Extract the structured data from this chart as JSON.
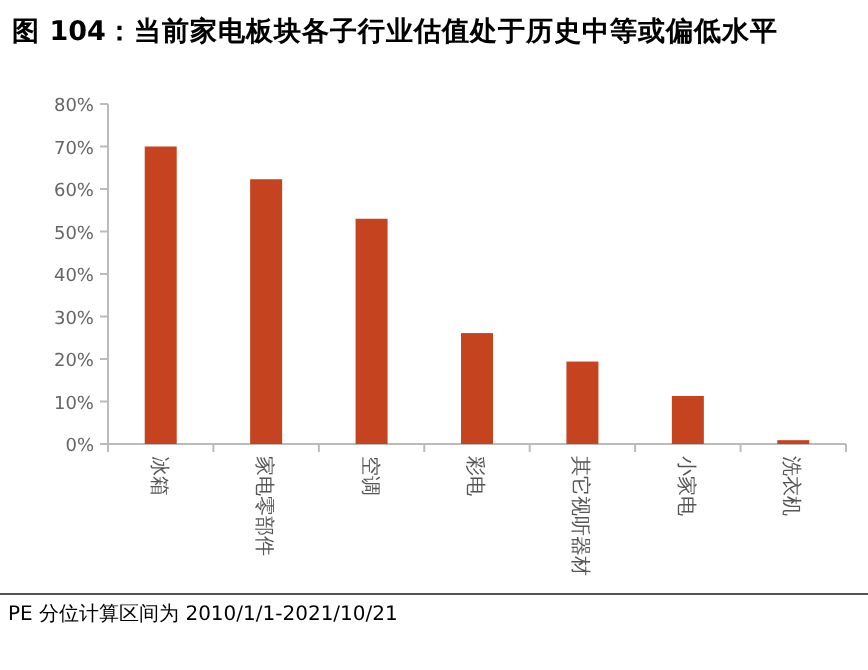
{
  "chart_data": {
    "type": "bar",
    "title": "图 104：当前家电板块各子行业估值处于历史中等或偏低水平",
    "categories": [
      "冰箱",
      "家电零部件",
      "空调",
      "彩电",
      "其它视听器材",
      "小家电",
      "洗衣机"
    ],
    "values": [
      70,
      62.3,
      53,
      26.1,
      19.4,
      11.3,
      0.9
    ],
    "color": "#c5441f",
    "ylim": [
      0,
      80
    ],
    "yticks": [
      {
        "value": 0,
        "label": "0%"
      },
      {
        "value": 10,
        "label": "10%"
      },
      {
        "value": 20,
        "label": "20%"
      },
      {
        "value": 30,
        "label": "30%"
      },
      {
        "value": 40,
        "label": "40%"
      },
      {
        "value": 50,
        "label": "50%"
      },
      {
        "value": 60,
        "label": "60%"
      },
      {
        "value": 70,
        "label": "70%"
      },
      {
        "value": 80,
        "label": "80%"
      }
    ],
    "grid": false,
    "annotations": [
      "PE 分位计算区间为 2010/1/1-2021/10/21"
    ]
  }
}
